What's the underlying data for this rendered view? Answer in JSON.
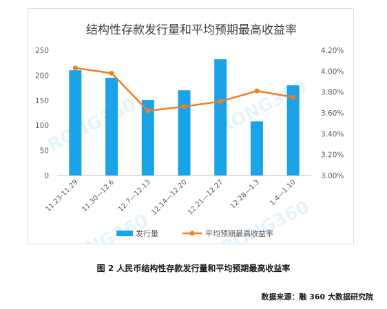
{
  "chart_data": {
    "type": "bar",
    "title": "结构性存款发行量和平均预期最高收益率",
    "categories": [
      "11.23-11.29",
      "11.30—12.6",
      "12.7—12.13",
      "12.14—12.20",
      "12.21—12.27",
      "12.28—1.3",
      "1.4—1.10"
    ],
    "series": [
      {
        "name": "发行量",
        "type": "bar",
        "axis": "left",
        "color": "#1aa3e8",
        "values": [
          210,
          195,
          151,
          170,
          232,
          108,
          180
        ]
      },
      {
        "name": "平均预期最高收益率",
        "type": "line",
        "axis": "right",
        "color": "#f47b20",
        "values": [
          4.03,
          3.98,
          3.62,
          3.66,
          3.71,
          3.81,
          3.75
        ]
      }
    ],
    "y_left": {
      "ticks": [
        "0",
        "50",
        "100",
        "150",
        "200",
        "250"
      ],
      "ylim": [
        0,
        250
      ]
    },
    "y_right": {
      "ticks": [
        "3.00%",
        "3.20%",
        "3.40%",
        "3.60%",
        "3.80%",
        "4.00%",
        "4.20%"
      ],
      "ylim": [
        3.0,
        4.2
      ]
    },
    "grid": false,
    "legend_position": "bottom"
  },
  "watermark": "RONG360",
  "caption": "图 2 人民币结构性存款发行量和平均预期最高收益率",
  "source": "数据来源：融 360 大数据研究院"
}
